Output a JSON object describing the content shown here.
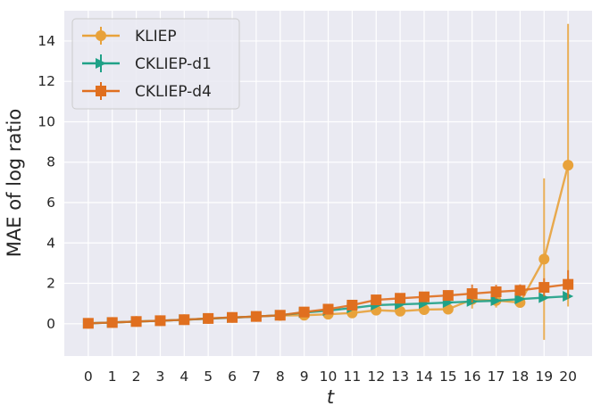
{
  "chart_data": {
    "type": "line",
    "title": "",
    "xlabel": "t",
    "ylabel": "MAE of log ratio",
    "x": [
      0,
      1,
      2,
      3,
      4,
      5,
      6,
      7,
      8,
      9,
      10,
      11,
      12,
      13,
      14,
      15,
      16,
      17,
      18,
      19,
      20
    ],
    "xlim": [
      -1,
      21
    ],
    "ylim": [
      -1.6,
      15.5
    ],
    "xticks": [
      "0",
      "1",
      "2",
      "3",
      "4",
      "5",
      "6",
      "7",
      "8",
      "9",
      "10",
      "11",
      "12",
      "13",
      "14",
      "15",
      "16",
      "17",
      "18",
      "19",
      "20"
    ],
    "yticks": [
      "0",
      "2",
      "4",
      "6",
      "8",
      "10",
      "12",
      "14"
    ],
    "grid": true,
    "legend_position": "top-left",
    "series": [
      {
        "name": "KLIEP",
        "color": "#E8A23B",
        "marker": "circle",
        "values": [
          0.02,
          0.06,
          0.11,
          0.15,
          0.2,
          0.26,
          0.31,
          0.36,
          0.41,
          0.42,
          0.47,
          0.53,
          0.67,
          0.62,
          0.7,
          0.72,
          1.2,
          1.15,
          1.05,
          3.2,
          7.85
        ],
        "errors": [
          0.02,
          0.03,
          0.03,
          0.04,
          0.04,
          0.05,
          0.05,
          0.06,
          0.08,
          0.08,
          0.08,
          0.1,
          0.15,
          0.1,
          0.15,
          0.15,
          0.45,
          0.35,
          0.25,
          4.0,
          7.0
        ]
      },
      {
        "name": "CKLIEP-d1",
        "color": "#1FA187",
        "marker": "triangle-right",
        "values": [
          0.02,
          0.06,
          0.11,
          0.15,
          0.2,
          0.25,
          0.3,
          0.36,
          0.42,
          0.55,
          0.65,
          0.78,
          0.92,
          0.96,
          1.0,
          1.05,
          1.1,
          1.14,
          1.22,
          1.29,
          1.36
        ],
        "errors": [
          0.01,
          0.02,
          0.02,
          0.03,
          0.03,
          0.03,
          0.04,
          0.04,
          0.05,
          0.06,
          0.06,
          0.07,
          0.08,
          0.08,
          0.08,
          0.09,
          0.09,
          0.1,
          0.1,
          0.11,
          0.12
        ]
      },
      {
        "name": "CKLIEP-d4",
        "color": "#E06F1F",
        "marker": "square",
        "values": [
          0.02,
          0.06,
          0.11,
          0.15,
          0.2,
          0.26,
          0.31,
          0.36,
          0.42,
          0.58,
          0.72,
          0.92,
          1.18,
          1.26,
          1.33,
          1.4,
          1.49,
          1.58,
          1.65,
          1.8,
          1.95
        ],
        "errors": [
          0.02,
          0.02,
          0.03,
          0.03,
          0.04,
          0.05,
          0.05,
          0.06,
          0.08,
          0.1,
          0.12,
          0.15,
          0.2,
          0.2,
          0.22,
          0.25,
          0.45,
          0.35,
          0.3,
          0.45,
          0.7
        ]
      }
    ]
  }
}
